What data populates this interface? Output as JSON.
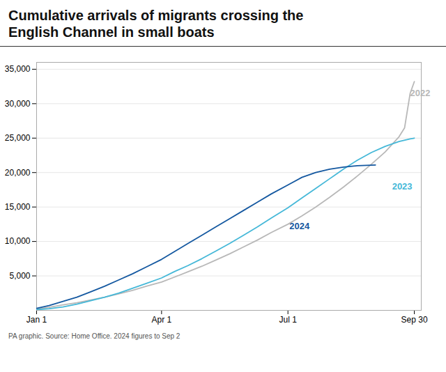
{
  "chart_data": {
    "type": "line",
    "title": "Cumulative arrivals of migrants crossing the\nEnglish Channel in small boats",
    "caption": "PA graphic. Source: Home Office. 2024 figures to Sep 2",
    "xlim": [
      1,
      278
    ],
    "xticks": [
      {
        "value": 1,
        "label": "Jan 1"
      },
      {
        "value": 91,
        "label": "Apr 1"
      },
      {
        "value": 182,
        "label": "Jul 1"
      },
      {
        "value": 273,
        "label": "Sep 30"
      }
    ],
    "ylim": [
      0,
      36000
    ],
    "yticks": [
      {
        "value": 5000,
        "label": "5,000"
      },
      {
        "value": 10000,
        "label": "10,000"
      },
      {
        "value": 15000,
        "label": "15,000"
      },
      {
        "value": 20000,
        "label": "20,000"
      },
      {
        "value": 25000,
        "label": "25,000"
      },
      {
        "value": 30000,
        "label": "30,000"
      },
      {
        "value": 35000,
        "label": "35,000"
      }
    ],
    "grid": true,
    "series": [
      {
        "name": "2022",
        "color": "#b8b8b8",
        "x": [
          1,
          10,
          20,
          30,
          40,
          50,
          60,
          70,
          80,
          91,
          100,
          110,
          120,
          130,
          140,
          150,
          160,
          170,
          182,
          192,
          202,
          212,
          222,
          232,
          242,
          252,
          262,
          266,
          268,
          270,
          273
        ],
        "values": [
          200,
          450,
          800,
          1100,
          1500,
          1900,
          2400,
          2900,
          3500,
          4100,
          4800,
          5600,
          6400,
          7300,
          8200,
          9200,
          10200,
          11300,
          12500,
          13700,
          15000,
          16400,
          17900,
          19500,
          21200,
          23000,
          25200,
          26500,
          29000,
          31500,
          33200
        ]
      },
      {
        "name": "2023",
        "color": "#45b8d8",
        "x": [
          1,
          10,
          20,
          30,
          40,
          50,
          60,
          70,
          80,
          91,
          100,
          110,
          120,
          130,
          140,
          150,
          160,
          170,
          182,
          192,
          202,
          212,
          222,
          232,
          242,
          252,
          262,
          270,
          273
        ],
        "values": [
          100,
          250,
          500,
          900,
          1400,
          1900,
          2500,
          3200,
          3900,
          4700,
          5600,
          6500,
          7500,
          8600,
          9700,
          10900,
          12100,
          13400,
          14900,
          16300,
          17700,
          19100,
          20500,
          21800,
          22900,
          23800,
          24500,
          24900,
          25000
        ]
      },
      {
        "name": "2024",
        "color": "#1458a0",
        "x": [
          1,
          10,
          20,
          30,
          40,
          50,
          60,
          70,
          80,
          91,
          100,
          110,
          120,
          130,
          140,
          150,
          160,
          170,
          182,
          192,
          202,
          212,
          222,
          232,
          245
        ],
        "values": [
          300,
          700,
          1300,
          1900,
          2700,
          3500,
          4400,
          5300,
          6300,
          7400,
          8500,
          9700,
          10900,
          12100,
          13300,
          14500,
          15700,
          16900,
          18200,
          19300,
          20000,
          20500,
          20800,
          21000,
          21100
        ]
      }
    ],
    "annotations": [
      {
        "text": "2022",
        "x": 270,
        "y": 31500,
        "color": "#b8b8b8"
      },
      {
        "text": "2023",
        "x": 257,
        "y": 18000,
        "color": "#45b8d8"
      },
      {
        "text": "2024",
        "x": 183,
        "y": 12200,
        "color": "#1458a0"
      }
    ]
  }
}
